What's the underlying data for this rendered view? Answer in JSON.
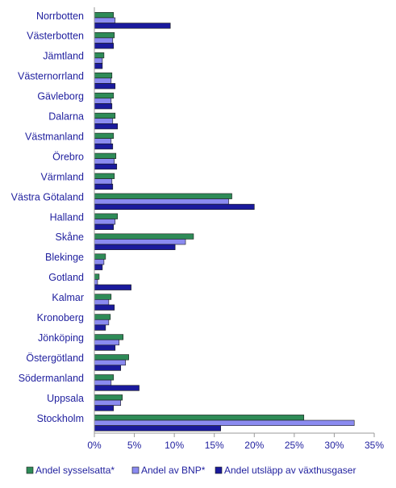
{
  "chart_data": {
    "type": "bar",
    "orientation": "horizontal",
    "categories": [
      "Norrbotten",
      "Västerbotten",
      "Jämtland",
      "Västernorrland",
      "Gävleborg",
      "Dalarna",
      "Västmanland",
      "Örebro",
      "Värmland",
      "Västra Götaland",
      "Halland",
      "Skåne",
      "Blekinge",
      "Gotland",
      "Kalmar",
      "Kronoberg",
      "Jönköping",
      "Östergötland",
      "Södermanland",
      "Uppsala",
      "Stockholm"
    ],
    "series": [
      {
        "name": "Andel sysselsatta*",
        "color": "#2e8b57",
        "values": [
          2.4,
          2.5,
          1.2,
          2.2,
          2.4,
          2.6,
          2.4,
          2.7,
          2.5,
          17.2,
          2.9,
          12.4,
          1.4,
          0.6,
          2.1,
          2.0,
          3.6,
          4.3,
          2.4,
          3.5,
          26.2
        ]
      },
      {
        "name": "Andel av BNP*",
        "color": "#8b8bf0",
        "values": [
          2.6,
          2.3,
          1.0,
          2.1,
          2.1,
          2.3,
          2.1,
          2.5,
          2.2,
          16.8,
          2.6,
          11.4,
          1.2,
          0.4,
          1.8,
          1.8,
          3.1,
          3.9,
          2.1,
          3.3,
          32.5
        ]
      },
      {
        "name": "Andel utsläpp av växthusgaser",
        "color": "#1a1a9c",
        "values": [
          9.5,
          2.4,
          1.0,
          2.6,
          2.2,
          2.9,
          2.3,
          2.8,
          2.3,
          20.0,
          2.4,
          10.1,
          1.0,
          4.6,
          2.5,
          1.4,
          2.6,
          3.3,
          5.6,
          2.4,
          15.8
        ]
      }
    ],
    "xaxis": {
      "min": 0,
      "max": 35,
      "ticks": [
        0,
        5,
        10,
        15,
        20,
        25,
        30,
        35
      ],
      "tick_labels": [
        "0%",
        "5%",
        "10%",
        "15%",
        "20%",
        "25%",
        "30%",
        "35%"
      ]
    },
    "title": "",
    "xlabel": "",
    "ylabel": "",
    "grid": false,
    "legend_position": "bottom"
  }
}
